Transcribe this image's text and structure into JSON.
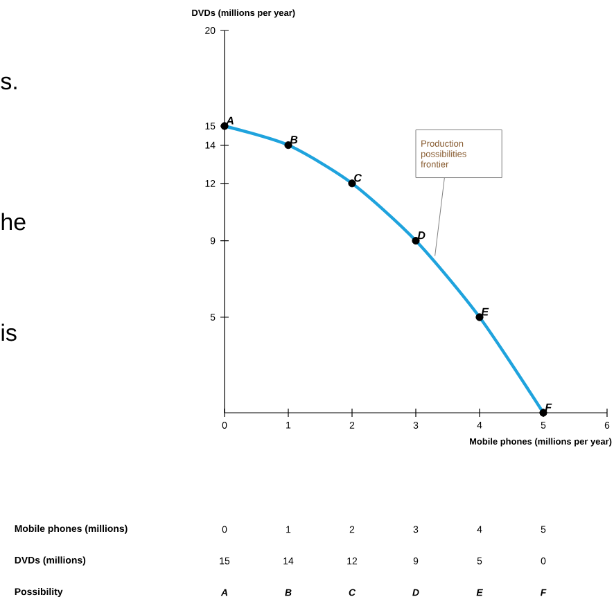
{
  "chart_data": {
    "type": "line",
    "xlabel": "Mobile phones (millions per year)",
    "ylabel": "DVDs (millions per year)",
    "x": [
      0,
      1,
      2,
      3,
      4,
      5
    ],
    "values": [
      15,
      14,
      12,
      9,
      5,
      0
    ],
    "color": "#1fa3dd",
    "marker": "circle",
    "xlim": [
      0,
      6
    ],
    "xticks": [
      0,
      1,
      2,
      3,
      4,
      5,
      6
    ],
    "ylim": [
      0,
      20
    ],
    "yticks": [
      5,
      9,
      12,
      14,
      15,
      20
    ],
    "annotations": [
      "s.",
      "he",
      "is",
      {
        "text": "Production possibilities frontier",
        "x": 3.3,
        "y": 8.2
      },
      "Mobile phones (millions)",
      "DVDs (millions)",
      "Possibility",
      "0",
      "1",
      "2",
      "3",
      "4",
      "5",
      "15",
      "14",
      "12",
      "9",
      "5",
      "0",
      {
        "text": "A",
        "x": 0,
        "y": 15
      },
      {
        "text": "B",
        "x": 1,
        "y": 14
      },
      {
        "text": "C",
        "x": 2,
        "y": 12
      },
      {
        "text": "D",
        "x": 3,
        "y": 9
      },
      {
        "text": "E",
        "x": 4,
        "y": 5
      },
      {
        "text": "F",
        "x": 5,
        "y": 0
      }
    ]
  }
}
